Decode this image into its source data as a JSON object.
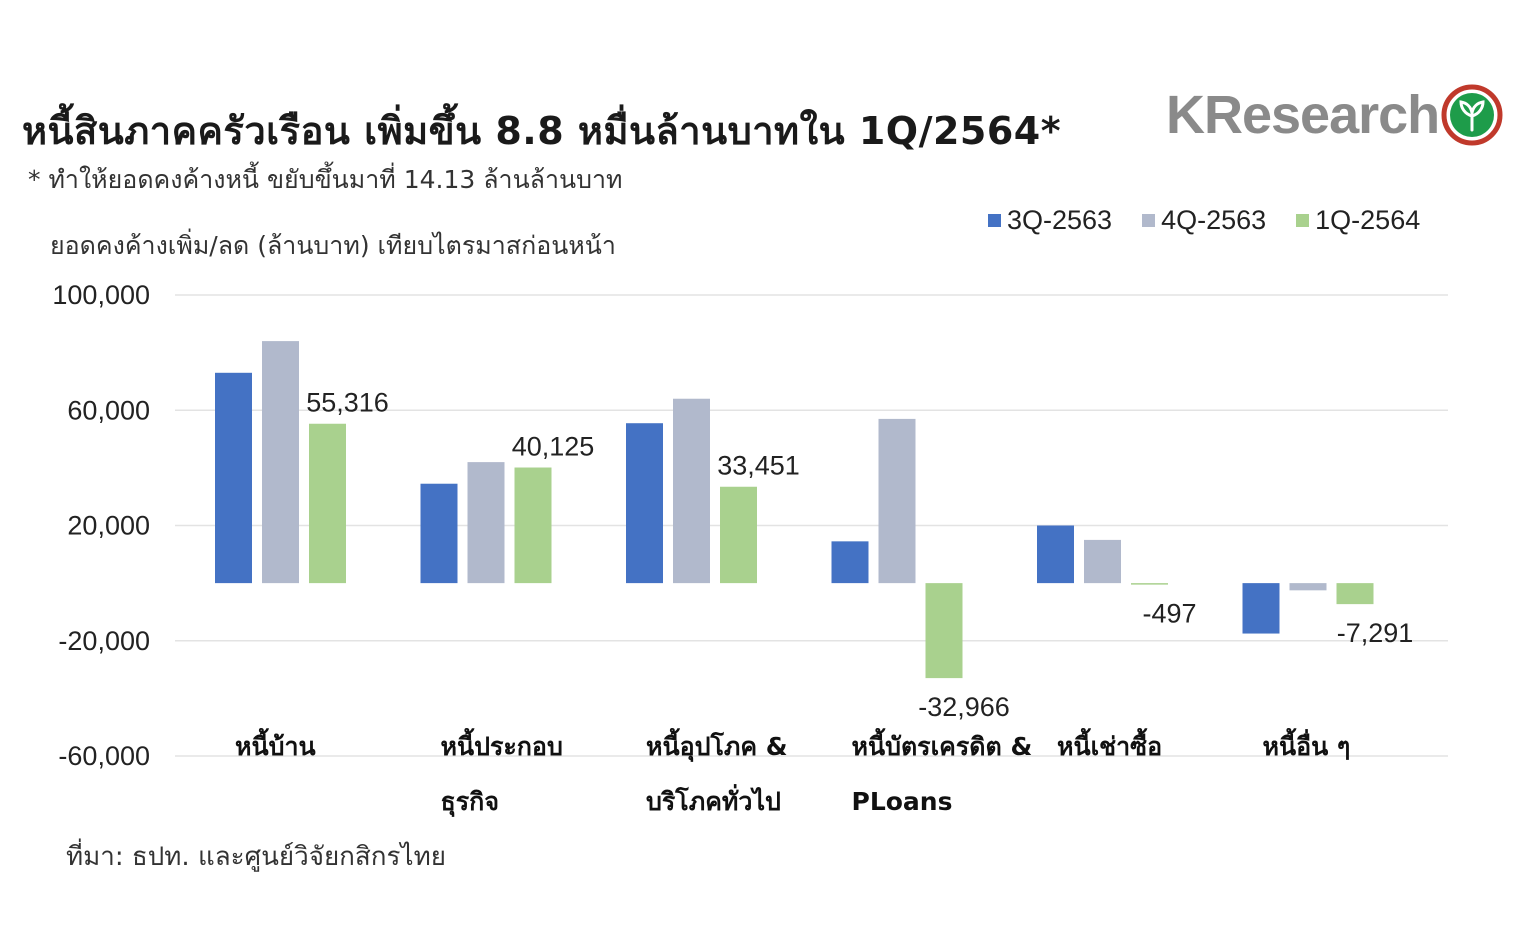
{
  "header": {
    "title": "หนี้สินภาคครัวเรือน เพิ่มขึ้น 8.8 หมื่นล้านบาทใน 1Q/2564*",
    "subtitle": "* ทำให้ยอดคงค้างหนี้ ขยับขึ้นมาที่ 14.13 ล้านล้านบาท",
    "logo_text": "KResearch"
  },
  "source": "ที่มา: ธปท. และศูนย์วิจัยกสิกรไทย",
  "colors": {
    "3Q-2563": "#4472c4",
    "4Q-2563": "#b1b9cc",
    "1Q-2564": "#a9d18e"
  },
  "chart_data": {
    "type": "bar",
    "ylabel": "ยอดคงค้างเพิ่ม/ลด (ล้านบาท) เทียบไตรมาสก่อนหน้า",
    "ylim": [
      -60000,
      100000
    ],
    "yticks": [
      "100,000",
      "60,000",
      "20,000",
      "-20,000",
      "-60,000"
    ],
    "ytick_values": [
      100000,
      60000,
      20000,
      -20000,
      -60000
    ],
    "grid": true,
    "legend_position": "top-right",
    "categories": [
      [
        "หนี้บ้าน"
      ],
      [
        "หนี้ประกอบ",
        "ธุรกิจ"
      ],
      [
        "หนี้อุปโภค &",
        "บริโภคทั่วไป"
      ],
      [
        "หนี้บัตรเครดิต &",
        "PLoans"
      ],
      [
        "หนี้เช่าซื้อ"
      ],
      [
        "หนี้อื่น ๆ"
      ]
    ],
    "series": [
      {
        "name": "3Q-2563",
        "values": [
          73000,
          34500,
          55500,
          14500,
          20000,
          -17500
        ]
      },
      {
        "name": "4Q-2563",
        "values": [
          84000,
          42000,
          64000,
          57000,
          15000,
          -2500
        ]
      },
      {
        "name": "1Q-2564",
        "values": [
          55316,
          40125,
          33451,
          -32966,
          -497,
          -7291
        ]
      }
    ],
    "data_labels": [
      "55,316",
      "40,125",
      "33,451",
      "-32,966",
      "-497",
      "-7,291"
    ]
  }
}
